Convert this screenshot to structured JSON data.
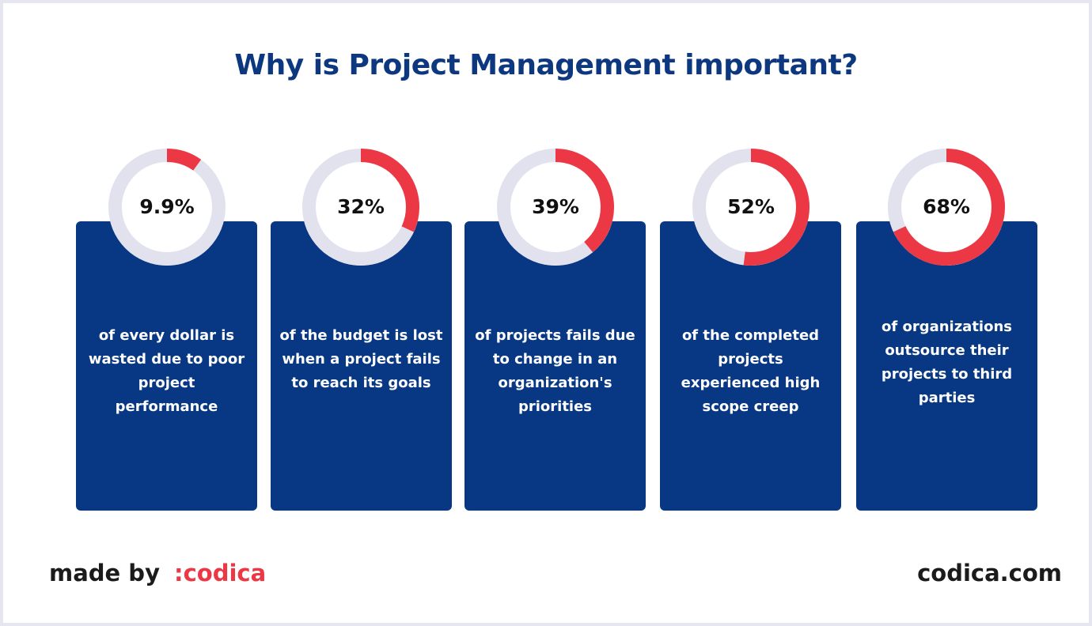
{
  "title": "Why is Project Management important?",
  "colors": {
    "title": "#0d3880",
    "card": "#083883",
    "ring_track": "#e2e1ee",
    "ring_fill": "#ec3744",
    "brand": "#ec3744"
  },
  "chart_data": {
    "type": "pie",
    "items": [
      {
        "label": "9.9%",
        "value": 9.9,
        "text": [
          "of every dollar is",
          "wasted due to poor",
          "project",
          "performance"
        ]
      },
      {
        "label": "32%",
        "value": 32,
        "text": [
          "of the budget is lost",
          "when a project fails",
          "to reach its goals"
        ]
      },
      {
        "label": "39%",
        "value": 39,
        "text": [
          "of projects fails due",
          "to change in an",
          "organization's",
          "priorities"
        ]
      },
      {
        "label": "52%",
        "value": 52,
        "text": [
          "of the completed",
          "projects",
          "experienced high",
          "scope creep"
        ]
      },
      {
        "label": "68%",
        "value": 68,
        "text": [
          "of organizations",
          "outsource their",
          "projects to third",
          "parties"
        ]
      }
    ]
  },
  "footer": {
    "made_by": "made by",
    "brand": ":codica",
    "site": "codica.com"
  }
}
